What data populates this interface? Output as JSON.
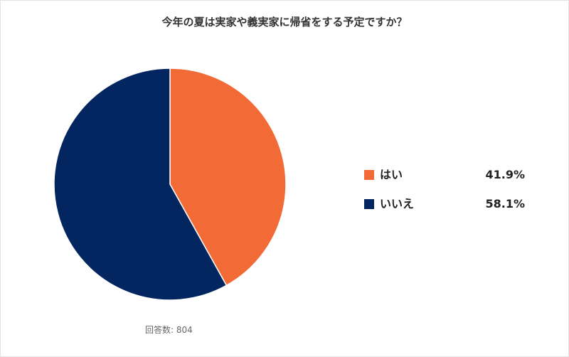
{
  "chart_data": {
    "type": "pie",
    "title": "今年の夏は実家や義実家に帰省をする予定ですか？",
    "categories": [
      "はい",
      "いいえ"
    ],
    "values": [
      41.9,
      58.1
    ],
    "value_labels": [
      "41.9%",
      "58.1%"
    ],
    "colors": [
      "#f26a36",
      "#032661"
    ],
    "legend_placement": "right",
    "note": "回答数: 804"
  }
}
